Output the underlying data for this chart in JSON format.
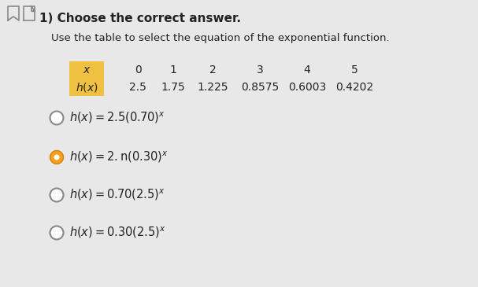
{
  "title": "1) Choose the correct answer.",
  "subtitle": "Use the table to select the equation of the exponential function.",
  "table_x_vals": [
    "0",
    "1",
    "2",
    "3",
    "4",
    "5"
  ],
  "table_hx_vals": [
    "2.5",
    "1.75",
    "1.225",
    "0.8575",
    "0.6003",
    "0.4202"
  ],
  "table_label_bg": "#f0c040",
  "options": [
    {
      "label": "h(x) = 2.5(0.70)ⁿ",
      "mathtext": "$h(x) = 2.5(0.70)^{x}$",
      "selected": false
    },
    {
      "label": "h(x) = 2.n(0.30)ⁿ",
      "mathtext": "$h(x) = 2.\\mathrm{n}(0.30)^{x}$",
      "selected": true
    },
    {
      "label": "h(x) = 0.70(2.5)ⁿ",
      "mathtext": "$h(x) = 0.70(2.5)^{x}$",
      "selected": false
    },
    {
      "label": "h(x) = 0.30(2.5)ⁿ",
      "mathtext": "$h(x) = 0.30(2.5)^{x}$",
      "selected": false
    }
  ],
  "bg_color": "#e8e8e8",
  "text_color": "#222222",
  "radio_selected_fill": "#f5a020",
  "radio_selected_edge": "#d48000",
  "radio_unselected_fill": "#ffffff",
  "radio_unselected_edge": "#888888",
  "figw": 6.07,
  "figh": 3.65,
  "dpi": 100
}
